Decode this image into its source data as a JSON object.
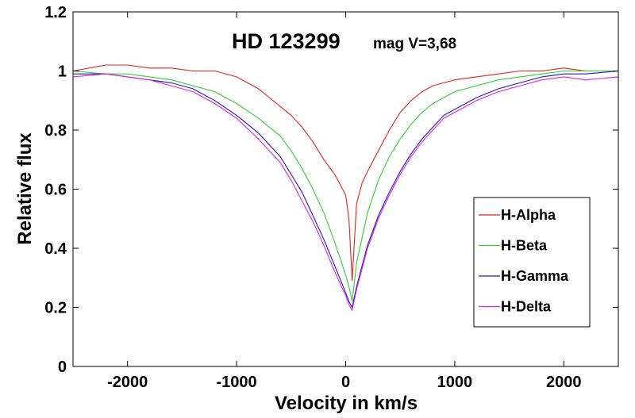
{
  "chart_data": {
    "type": "line",
    "title": "HD 123299",
    "subtitle": "mag V=3,68",
    "xlabel": "Velocity in km/s",
    "ylabel": "Relative flux",
    "xlim": [
      -2500,
      2500
    ],
    "ylim": [
      0,
      1.2
    ],
    "xticks": [
      -2000,
      -1000,
      0,
      1000,
      2000
    ],
    "yticks": [
      0,
      0.2,
      0.4,
      0.6,
      0.8,
      1,
      1.2
    ],
    "xtick_labels": [
      "-2000",
      "-1000",
      "0",
      "1000",
      "2000"
    ],
    "ytick_labels": [
      "0",
      "0.2",
      "0.4",
      "0.6",
      "0.8",
      "1",
      "1.2"
    ],
    "legend_position": "lower-right",
    "grid": false,
    "series": [
      {
        "name": "H-Alpha",
        "color": "#e8201c",
        "x": [
          -2500,
          -2200,
          -2000,
          -1800,
          -1600,
          -1400,
          -1200,
          -1000,
          -900,
          -800,
          -700,
          -600,
          -500,
          -400,
          -300,
          -200,
          -100,
          0,
          30,
          60,
          100,
          150,
          200,
          300,
          400,
          500,
          600,
          700,
          800,
          900,
          1000,
          1200,
          1400,
          1600,
          1800,
          2000,
          2200,
          2500
        ],
        "y": [
          1.0,
          1.02,
          1.02,
          1.01,
          1.01,
          1.0,
          1.0,
          0.98,
          0.96,
          0.94,
          0.91,
          0.88,
          0.85,
          0.81,
          0.76,
          0.7,
          0.65,
          0.58,
          0.5,
          0.29,
          0.55,
          0.62,
          0.66,
          0.73,
          0.8,
          0.86,
          0.9,
          0.93,
          0.95,
          0.96,
          0.97,
          0.98,
          0.99,
          1.0,
          1.0,
          1.01,
          1.0,
          1.0
        ]
      },
      {
        "name": "H-Beta",
        "color": "#2fd12f",
        "x": [
          -2500,
          -2200,
          -2000,
          -1800,
          -1600,
          -1400,
          -1200,
          -1000,
          -800,
          -600,
          -500,
          -400,
          -300,
          -200,
          -100,
          0,
          30,
          60,
          100,
          200,
          300,
          400,
          500,
          600,
          700,
          800,
          900,
          1000,
          1200,
          1400,
          1600,
          1800,
          2000,
          2200,
          2500
        ],
        "y": [
          1.0,
          0.99,
          0.99,
          0.98,
          0.97,
          0.95,
          0.93,
          0.89,
          0.84,
          0.78,
          0.73,
          0.67,
          0.6,
          0.52,
          0.42,
          0.31,
          0.27,
          0.22,
          0.35,
          0.52,
          0.63,
          0.71,
          0.77,
          0.82,
          0.86,
          0.89,
          0.91,
          0.93,
          0.95,
          0.97,
          0.98,
          0.99,
          1.0,
          1.0,
          1.0
        ]
      },
      {
        "name": "H-Gamma",
        "color": "#1c1cb8",
        "x": [
          -2500,
          -2200,
          -2000,
          -1800,
          -1600,
          -1400,
          -1200,
          -1000,
          -800,
          -600,
          -500,
          -400,
          -300,
          -200,
          -100,
          0,
          30,
          60,
          100,
          200,
          300,
          400,
          500,
          600,
          700,
          800,
          900,
          1000,
          1200,
          1400,
          1600,
          1800,
          2000,
          2200,
          2500
        ],
        "y": [
          0.99,
          0.99,
          0.98,
          0.97,
          0.96,
          0.94,
          0.9,
          0.85,
          0.79,
          0.71,
          0.65,
          0.59,
          0.51,
          0.43,
          0.34,
          0.25,
          0.22,
          0.2,
          0.27,
          0.41,
          0.51,
          0.59,
          0.66,
          0.72,
          0.77,
          0.81,
          0.85,
          0.87,
          0.91,
          0.94,
          0.96,
          0.98,
          0.99,
          0.99,
          1.0
        ]
      },
      {
        "name": "H-Delta",
        "color": "#e61ee6",
        "x": [
          -2500,
          -2200,
          -2000,
          -1800,
          -1600,
          -1400,
          -1200,
          -1000,
          -800,
          -600,
          -500,
          -400,
          -300,
          -200,
          -100,
          0,
          30,
          60,
          100,
          200,
          300,
          400,
          500,
          600,
          700,
          800,
          900,
          1000,
          1200,
          1400,
          1600,
          1800,
          2000,
          2200,
          2500
        ],
        "y": [
          0.98,
          0.99,
          0.98,
          0.97,
          0.95,
          0.93,
          0.89,
          0.84,
          0.77,
          0.69,
          0.63,
          0.56,
          0.49,
          0.41,
          0.32,
          0.24,
          0.21,
          0.19,
          0.26,
          0.4,
          0.5,
          0.58,
          0.65,
          0.71,
          0.76,
          0.8,
          0.84,
          0.86,
          0.9,
          0.93,
          0.95,
          0.97,
          0.98,
          0.97,
          0.98
        ]
      }
    ]
  }
}
